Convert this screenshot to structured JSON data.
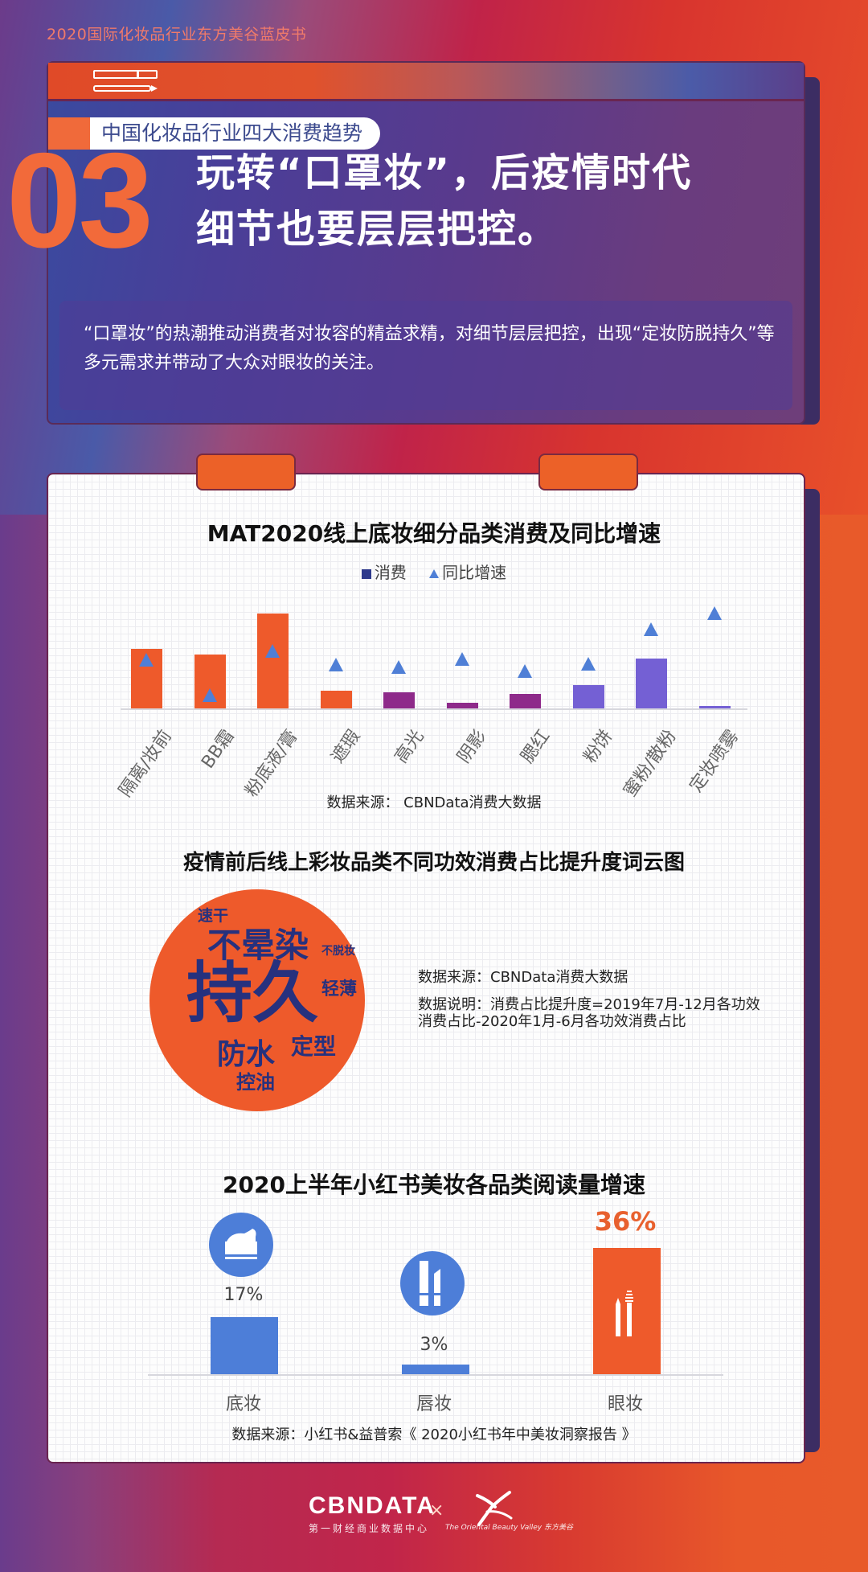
{
  "page": {
    "caption": "2020国际化妆品行业东方美谷蓝皮书"
  },
  "header": {
    "trend_tag": "中国化妆品行业四大消费趋势",
    "number": "03",
    "title_line1": "玩转“口罩妆”，后疫情时代",
    "title_line2": "细节也要层层把控。",
    "description": "“口罩妆”的热潮推动消费者对妆容的精益求精，对细节层层把控，出现“定妆防脱持久”等多元需求并带动了大众对眼妆的关注。",
    "icon": "pen-notepad-icon"
  },
  "colors": {
    "orange": "#ee5a2b",
    "magenta": "#8e2a8a",
    "violet": "#7460d4",
    "triangle_blue": "#4f7fd6",
    "legend_navy": "#2e3a8c",
    "word_navy": "#26317e",
    "icon_blue": "#4d7ed8"
  },
  "chart_data": [
    {
      "type": "bar",
      "title": "MAT2020线上底妆细分品类消费及同比增速",
      "legend": [
        "消费",
        "同比增速"
      ],
      "legend_position": "top",
      "categories": [
        "隔离/妆前",
        "BB霜",
        "粉底液/膏",
        "遮瑕",
        "高光",
        "阴影",
        "腮红",
        "粉饼",
        "蜜粉/散粉",
        "定妆喷雾"
      ],
      "series": [
        {
          "name": "消费",
          "kind": "bar",
          "values": [
            74,
            67,
            118,
            22,
            20,
            7,
            18,
            29,
            62,
            3
          ],
          "colors": [
            "#ee5a2b",
            "#ee5a2b",
            "#ee5a2b",
            "#ee5a2b",
            "#8e2a8a",
            "#8e2a8a",
            "#8e2a8a",
            "#7460d4",
            "#7460d4",
            "#7460d4"
          ]
        },
        {
          "name": "同比增速",
          "kind": "triangle",
          "values": [
            62,
            18,
            73,
            56,
            53,
            63,
            48,
            57,
            100,
            120
          ]
        }
      ],
      "y_axis_visible": false,
      "grid": false,
      "unit_note": "relative values estimated from pixel heights (no axis shown)",
      "source": "数据来源：  CBNData消费大数据"
    },
    {
      "type": "wordcloud",
      "title": "疫情前后线上彩妆品类不同功效消费占比提升度词云图",
      "words": [
        {
          "text": "持久",
          "weight": 5
        },
        {
          "text": "不晕染",
          "weight": 4
        },
        {
          "text": "防水",
          "weight": 3
        },
        {
          "text": "定型",
          "weight": 2.5
        },
        {
          "text": "控油",
          "weight": 2
        },
        {
          "text": "轻薄",
          "weight": 2
        },
        {
          "text": "速干",
          "weight": 1.5
        },
        {
          "text": "不脱妆",
          "weight": 1.2
        }
      ],
      "source": "数据来源：CBNData消费大数据",
      "note_line1": "数据说明：消费占比提升度=2019年7月-12月各功效",
      "note_line2": "消费占比-2020年1月-6月各功效消费占比"
    },
    {
      "type": "bar",
      "title": "2020上半年小红书美妆各品类阅读量增速",
      "categories": [
        "底妆",
        "唇妆",
        "眼妆"
      ],
      "values": [
        17,
        3,
        36
      ],
      "labels": [
        "17%",
        "3%",
        "36%"
      ],
      "icons": [
        "cream-jar-icon",
        "lipstick-icon",
        "eyeliner-mascara-icon"
      ],
      "colors": [
        "#4d7ed8",
        "#4d7ed8",
        "#ee5a2b"
      ],
      "unit": "%",
      "source": "数据来源：小红书&益普索《 2020小红书年中美妆洞察报告 》"
    }
  ],
  "footer": {
    "logo1": "CB✖DATA",
    "logo1_text": "CBNDATA",
    "logo1_sub": "第一财经商业数据中心",
    "separator": "×",
    "logo2_sub": "The Oriental Beauty Valley 东方美谷"
  }
}
